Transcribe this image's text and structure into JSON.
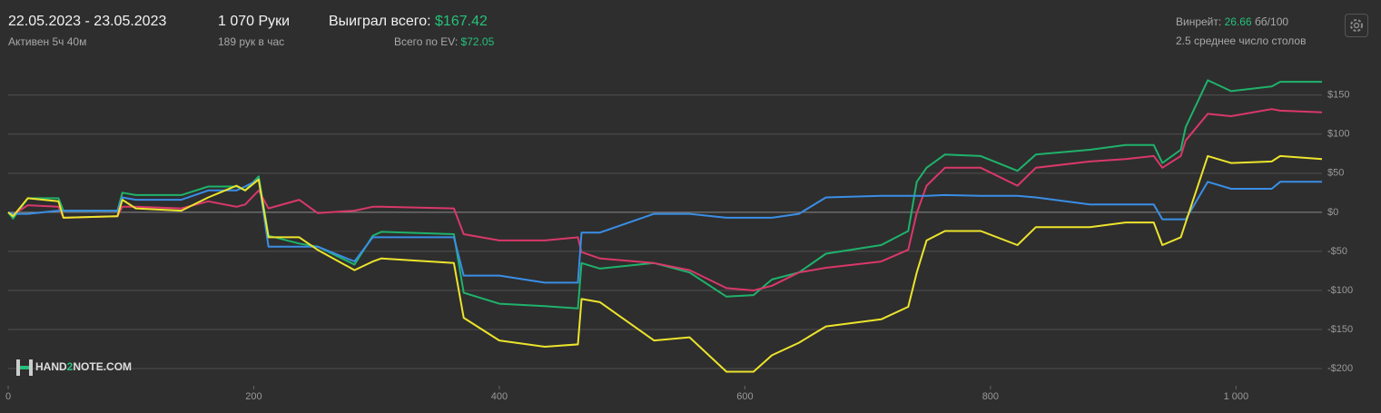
{
  "header": {
    "dates": "22.05.2023 - 23.05.2023",
    "active": "Активен 5ч 40м",
    "hands": "1 070 Руки",
    "rate": "189 рук в час",
    "won_label": "Выиграл всего:",
    "won_value": "$167.42",
    "ev_label": "Всего по EV:",
    "ev_value": "$72.05",
    "winrate_label": "Винрейт:",
    "winrate_value": "26.66",
    "winrate_unit": "бб/100",
    "tables": "2.5 среднее число столов",
    "logo_a": "HAND",
    "logo_b": "2",
    "logo_c": "NOTE.COM"
  },
  "chart_data": {
    "type": "line",
    "x": [
      0,
      4,
      16,
      41,
      45,
      89,
      93,
      104,
      141,
      163,
      186,
      193,
      204,
      212,
      237,
      252,
      282,
      297,
      304,
      363,
      371,
      400,
      437,
      464,
      467,
      482,
      526,
      555,
      585,
      607,
      622,
      644,
      666,
      711,
      733,
      740,
      748,
      763,
      792,
      822,
      837,
      881,
      910,
      933,
      940,
      955,
      959,
      977,
      996,
      1029,
      1036,
      1070
    ],
    "series": [
      {
        "color": "#1fb26b",
        "values": [
          0,
          -8,
          18,
          18,
          2,
          2,
          25,
          22,
          22,
          33,
          33,
          28,
          46,
          -30,
          -40,
          -44,
          -67,
          -30,
          -25,
          -28,
          -103,
          -117,
          -120,
          -123,
          -65,
          -72,
          -65,
          -77,
          -108,
          -106,
          -86,
          -77,
          -53,
          -42,
          -24,
          39,
          57,
          74,
          72,
          53,
          74,
          80,
          86,
          86,
          63,
          80,
          109,
          169,
          155,
          161,
          167,
          167
        ]
      },
      {
        "color": "#d9386a",
        "values": [
          0,
          -3,
          9,
          7,
          -7,
          -5,
          7,
          7,
          5,
          14,
          7,
          10,
          28,
          5,
          16,
          -1,
          2,
          7,
          7,
          5,
          -28,
          -36,
          -36,
          -32,
          -51,
          -59,
          -65,
          -74,
          -97,
          -100,
          -94,
          -77,
          -71,
          -63,
          -48,
          -1,
          34,
          57,
          57,
          34,
          57,
          65,
          68,
          72,
          57,
          72,
          92,
          126,
          123,
          132,
          130,
          128
        ]
      },
      {
        "color": "#3a8ee6",
        "values": [
          0,
          -2,
          -2,
          2,
          2,
          2,
          19,
          16,
          16,
          28,
          28,
          33,
          42,
          -44,
          -44,
          -44,
          -63,
          -32,
          -32,
          -32,
          -81,
          -81,
          -90,
          -90,
          -26,
          -26,
          -2,
          -2,
          -7,
          -7,
          -7,
          -2,
          19,
          21,
          21,
          21,
          21,
          22,
          21,
          21,
          19,
          10,
          10,
          10,
          -9,
          -9,
          -9,
          39,
          30,
          30,
          39,
          39
        ]
      },
      {
        "color": "#ece42c",
        "values": [
          0,
          -5,
          18,
          14,
          -7,
          -5,
          16,
          5,
          2,
          19,
          34,
          28,
          42,
          -32,
          -32,
          -48,
          -74,
          -63,
          -59,
          -65,
          -135,
          -164,
          -172,
          -169,
          -111,
          -115,
          -164,
          -160,
          -204,
          -204,
          -183,
          -167,
          -146,
          -137,
          -121,
          -77,
          -36,
          -24,
          -24,
          -42,
          -19,
          -19,
          -13,
          -13,
          -42,
          -32,
          -13,
          72,
          63,
          65,
          72,
          68
        ]
      }
    ],
    "xlim": [
      0,
      1070
    ],
    "ylim": [
      -222,
      188
    ],
    "xticks": [
      0,
      200,
      400,
      600,
      800,
      {
        "value": 1000,
        "label": "1 000"
      }
    ],
    "yticks": [
      {
        "value": -200,
        "label": "-$200"
      },
      {
        "value": -150,
        "label": "-$150"
      },
      {
        "value": -100,
        "label": "-$100"
      },
      {
        "value": -50,
        "label": "-$50"
      },
      {
        "value": 0,
        "label": "$0"
      },
      {
        "value": 50,
        "label": "$50"
      },
      {
        "value": 100,
        "label": "$100"
      },
      {
        "value": 150,
        "label": "$150"
      }
    ],
    "grid": true
  }
}
